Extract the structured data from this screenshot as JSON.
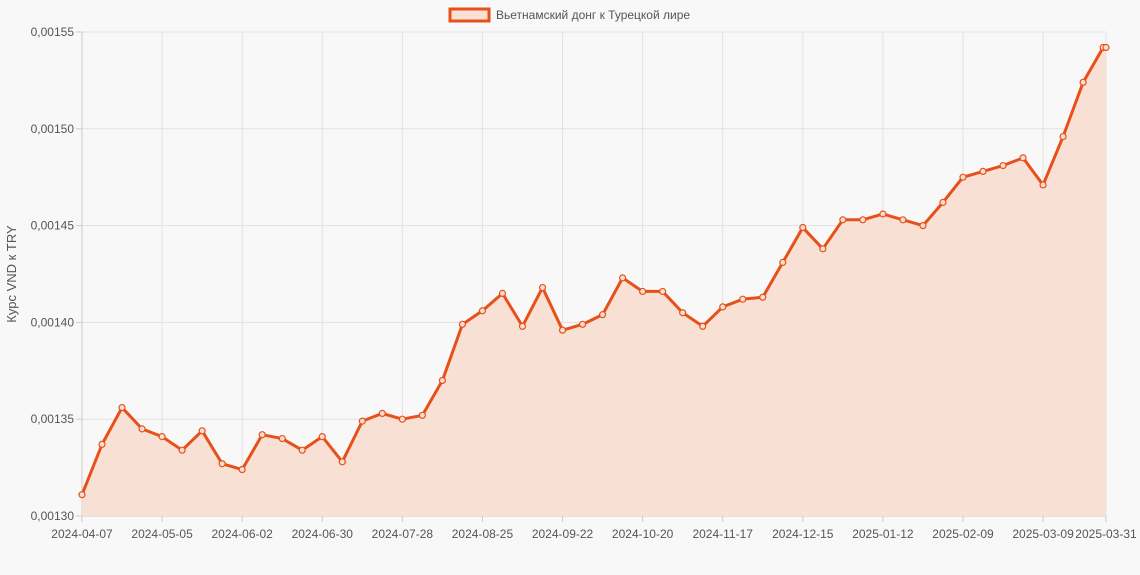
{
  "chart_data": {
    "type": "area",
    "legend": {
      "label": "Вьетнамский донг к Турецкой лире",
      "position": "top-center"
    },
    "ylabel": "Курс VND к TRY",
    "xlabel": "",
    "ylim": [
      0.0013,
      0.00155
    ],
    "y_ticks": [
      "0,00130",
      "0,00135",
      "0,00140",
      "0,00145",
      "0,00150",
      "0,00155"
    ],
    "x_tick_labels": [
      "2024-04-07",
      "2024-05-05",
      "2024-06-02",
      "2024-06-30",
      "2024-07-28",
      "2024-08-25",
      "2024-09-22",
      "2024-10-20",
      "2024-11-17",
      "2024-12-15",
      "2025-01-12",
      "2025-02-09",
      "2025-03-09",
      "2025-03-31"
    ],
    "grid": true,
    "colors": {
      "line": "#e8501a",
      "fill": "#f8e0d5",
      "background": "#f8f8f8"
    },
    "series": [
      {
        "name": "Вьетнамский донг к Турецкой лире",
        "x": [
          "2024-04-07",
          "2024-04-14",
          "2024-04-21",
          "2024-04-28",
          "2024-05-05",
          "2024-05-12",
          "2024-05-19",
          "2024-05-26",
          "2024-06-02",
          "2024-06-09",
          "2024-06-16",
          "2024-06-23",
          "2024-06-30",
          "2024-07-07",
          "2024-07-14",
          "2024-07-21",
          "2024-07-28",
          "2024-08-04",
          "2024-08-11",
          "2024-08-18",
          "2024-08-25",
          "2024-09-01",
          "2024-09-08",
          "2024-09-15",
          "2024-09-22",
          "2024-09-29",
          "2024-10-06",
          "2024-10-13",
          "2024-10-20",
          "2024-10-27",
          "2024-11-03",
          "2024-11-10",
          "2024-11-17",
          "2024-11-24",
          "2024-12-01",
          "2024-12-08",
          "2024-12-15",
          "2024-12-22",
          "2024-12-29",
          "2025-01-05",
          "2025-01-12",
          "2025-01-19",
          "2025-01-26",
          "2025-02-02",
          "2025-02-09",
          "2025-02-16",
          "2025-02-23",
          "2025-03-02",
          "2025-03-09",
          "2025-03-16",
          "2025-03-23",
          "2025-03-30",
          "2025-03-31"
        ],
        "values": [
          0.001311,
          0.001337,
          0.001356,
          0.001345,
          0.001341,
          0.001334,
          0.001344,
          0.001327,
          0.001324,
          0.001342,
          0.00134,
          0.001334,
          0.001341,
          0.001328,
          0.001349,
          0.001353,
          0.00135,
          0.001352,
          0.00137,
          0.001399,
          0.001406,
          0.001415,
          0.001398,
          0.001418,
          0.001396,
          0.001399,
          0.001404,
          0.001423,
          0.001416,
          0.001416,
          0.001405,
          0.001398,
          0.001408,
          0.001412,
          0.001413,
          0.001431,
          0.001449,
          0.001438,
          0.001453,
          0.001453,
          0.001456,
          0.001453,
          0.00145,
          0.001462,
          0.001475,
          0.001478,
          0.001481,
          0.001485,
          0.001471,
          0.001496,
          0.001524,
          0.001542,
          0.001542
        ]
      }
    ]
  }
}
